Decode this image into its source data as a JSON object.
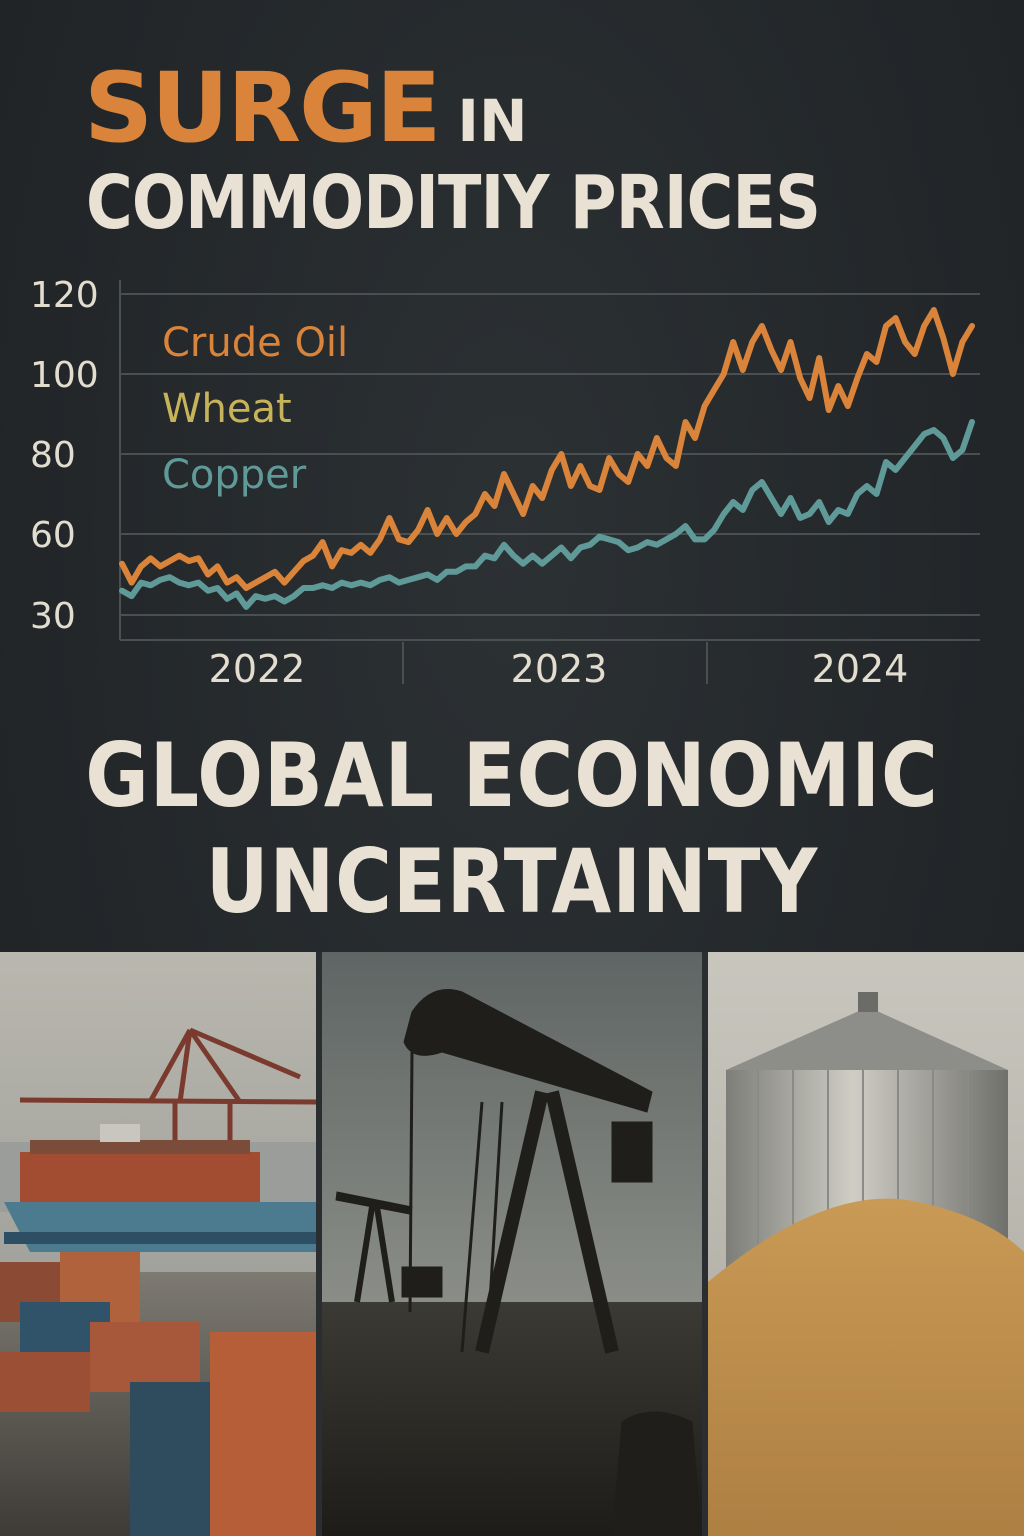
{
  "headline": {
    "accent_word": "SURGE",
    "connector": "IN",
    "line2": "COMMODITIY PRICES"
  },
  "chart_data": {
    "type": "line",
    "y_ticks": [
      120,
      100,
      80,
      60,
      30
    ],
    "ylim": [
      30,
      120
    ],
    "x_ticks": [
      "2022",
      "2023",
      "2024"
    ],
    "grid": true,
    "legend_position": "top-left",
    "series": [
      {
        "name": "Crude Oil",
        "color": "#d9843a",
        "values": [
          49,
          42,
          48,
          51,
          48,
          50,
          52,
          50,
          51,
          45,
          48,
          42,
          44,
          40,
          42,
          44,
          46,
          42,
          46,
          50,
          52,
          57,
          48,
          54,
          53,
          56,
          53,
          58,
          64,
          58,
          57,
          61,
          66,
          60,
          64,
          60,
          63,
          65,
          70,
          67,
          75,
          70,
          65,
          72,
          69,
          76,
          80,
          72,
          77,
          72,
          71,
          79,
          75,
          73,
          80,
          77,
          84,
          79,
          77,
          88,
          84,
          92,
          96,
          100,
          108,
          101,
          108,
          112,
          106,
          101,
          108,
          99,
          94,
          104,
          91,
          97,
          92,
          99,
          105,
          103,
          112,
          114,
          108,
          105,
          112,
          116,
          109,
          100,
          108,
          112
        ]
      },
      {
        "name": "Wheat",
        "color": "#c7b45a",
        "values": []
      },
      {
        "name": "Copper",
        "color": "#5f9a98",
        "values": [
          39,
          37,
          42,
          41,
          43,
          44,
          42,
          41,
          42,
          39,
          40,
          36,
          38,
          33,
          37,
          36,
          37,
          35,
          37,
          40,
          40,
          41,
          40,
          42,
          41,
          42,
          41,
          43,
          44,
          42,
          43,
          44,
          45,
          43,
          46,
          46,
          48,
          48,
          52,
          51,
          56,
          52,
          49,
          52,
          49,
          52,
          55,
          51,
          55,
          56,
          59,
          58,
          57,
          54,
          55,
          57,
          56,
          58,
          60,
          62,
          58,
          58,
          61,
          65,
          68,
          66,
          71,
          73,
          69,
          65,
          69,
          64,
          65,
          68,
          63,
          66,
          65,
          70,
          72,
          70,
          78,
          76,
          79,
          82,
          85,
          86,
          84,
          79,
          81,
          88
        ]
      }
    ]
  },
  "subtitle": {
    "line1": "GLOBAL ECONOMIC",
    "line2": "UNCERTAINTY"
  },
  "photos": [
    {
      "icon": "shipping-port-photo"
    },
    {
      "icon": "oil-pumpjack-photo"
    },
    {
      "icon": "grain-silo-photo"
    }
  ]
}
